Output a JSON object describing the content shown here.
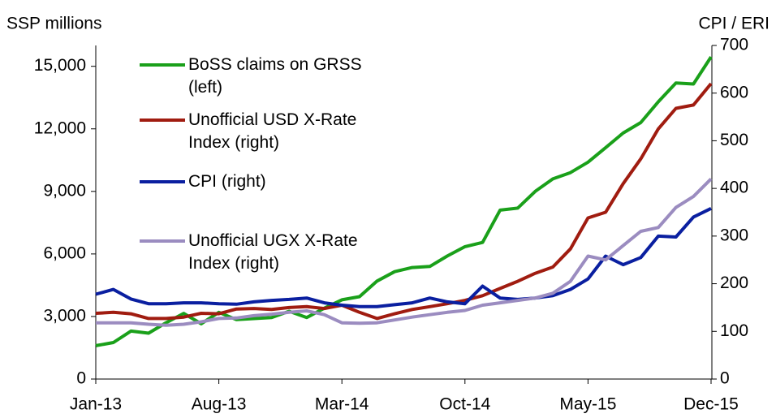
{
  "chart_data": {
    "type": "line",
    "y_label": "SSP millions",
    "y2_label": "CPI / ERI",
    "categories": [
      "Jan-13",
      null,
      null,
      null,
      null,
      null,
      null,
      "Aug-13",
      null,
      null,
      null,
      null,
      null,
      null,
      "Mar-14",
      null,
      null,
      null,
      null,
      null,
      null,
      "Oct-14",
      null,
      null,
      null,
      null,
      null,
      null,
      "May-15",
      null,
      null,
      null,
      null,
      null,
      null,
      "Dec-15"
    ],
    "ylim": [
      0,
      16000
    ],
    "yticks": [
      0,
      {
        "value": 3000,
        "label": "3,000"
      },
      {
        "value": 6000,
        "label": "6,000"
      },
      {
        "value": 9000,
        "label": "9,000"
      },
      {
        "value": 12000,
        "label": "12,000"
      },
      {
        "value": 15000,
        "label": "15,000"
      }
    ],
    "y2lim": [
      0,
      700
    ],
    "y2ticks": [
      0,
      100,
      200,
      300,
      400,
      500,
      600,
      700
    ],
    "grid": false,
    "legend": "upper left",
    "series": [
      {
        "name": "BoSS claims on GRSS (left)",
        "color": "#1aa01a",
        "values": [
          1600,
          1750,
          2300,
          2200,
          2700,
          3150,
          2650,
          3200,
          2850,
          2900,
          2950,
          3250,
          2950,
          3400,
          3800,
          3950,
          4700,
          5150,
          5350,
          5400,
          5900,
          6350,
          6550,
          8100,
          8200,
          9000,
          9600,
          9900,
          10400,
          11100,
          11800,
          12300,
          13300,
          14200,
          14150,
          15450
        ]
      },
      {
        "name": "Unofficial USD X-Rate Index (right)",
        "color": "#a01c10",
        "axis": "y2",
        "values": [
          138,
          140,
          137,
          127,
          127,
          130,
          138,
          137,
          147,
          148,
          146,
          150,
          152,
          148,
          155,
          140,
          127,
          137,
          146,
          152,
          158,
          165,
          175,
          190,
          205,
          222,
          235,
          273,
          338,
          350,
          410,
          462,
          525,
          568,
          575,
          620
        ]
      },
      {
        "name": "CPI (right)",
        "color": "#0a1fa0",
        "axis": "y2",
        "values": [
          178,
          188,
          168,
          158,
          158,
          160,
          160,
          158,
          157,
          162,
          165,
          167,
          170,
          160,
          155,
          152,
          152,
          156,
          160,
          170,
          162,
          158,
          195,
          170,
          167,
          170,
          175,
          188,
          210,
          258,
          240,
          255,
          300,
          298,
          340,
          358
        ]
      },
      {
        "name": "Unofficial UGX X-Rate Index (right)",
        "color": "#9b8cc0",
        "axis": "y2",
        "values": [
          118,
          118,
          118,
          115,
          113,
          115,
          120,
          127,
          128,
          133,
          136,
          140,
          143,
          135,
          118,
          117,
          118,
          124,
          130,
          135,
          140,
          144,
          155,
          160,
          165,
          170,
          180,
          205,
          258,
          250,
          280,
          310,
          318,
          360,
          383,
          420
        ]
      }
    ]
  }
}
